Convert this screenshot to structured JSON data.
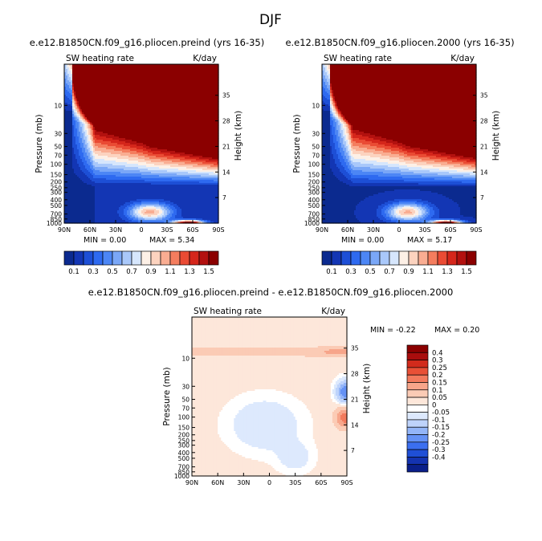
{
  "figure": {
    "title": "DJF"
  },
  "palettes": {
    "top": [
      "#0b2a8f",
      "#1336b4",
      "#1d4fd6",
      "#2e6af0",
      "#4c86f5",
      "#7aa7f7",
      "#a9c8fa",
      "#d6e6fc",
      "#fdf0e6",
      "#fcd3bf",
      "#f9ad92",
      "#f47d5e",
      "#ea4b34",
      "#d5261b",
      "#b3110f",
      "#8b0000"
    ],
    "diff": [
      "#0a1f8a",
      "#1433b0",
      "#1f4fd6",
      "#3b6ff0",
      "#6592f5",
      "#93b5f8",
      "#bed3fb",
      "#dde9fd",
      "#ffffff",
      "#fde7da",
      "#fbcbb5",
      "#f7a58a",
      "#f27a5d",
      "#e85036",
      "#d22b1c",
      "#a90d0d",
      "#8b0000"
    ]
  },
  "chart_data": [
    {
      "type": "heatmap",
      "name": "preind",
      "title": "e.e12.B1850CN.f09_g16.pliocen.preind (yrs 16-35)",
      "subtitle_left": "SW heating rate",
      "subtitle_right": "K/day",
      "ylabel": "Pressure (mb)",
      "ylabel_right": "Height (km)",
      "x_ticks": [
        "90N",
        "60N",
        "30N",
        "0",
        "30S",
        "60S",
        "90S"
      ],
      "y_ticks": [
        "10",
        "30",
        "50",
        "70",
        "100",
        "150",
        "200",
        "250",
        "300",
        "400",
        "500",
        "700",
        "850",
        "1000"
      ],
      "y_ticks_right": [
        "35",
        "28",
        "21",
        "14",
        "7"
      ],
      "ylim": [
        1000,
        2
      ],
      "min_label": "MIN = 0.00",
      "max_label": "MAX = 5.34",
      "min": 0.0,
      "max": 5.34,
      "colorbar_labels": [
        "0.1",
        "0.3",
        "0.5",
        "0.7",
        "0.9",
        "1.1",
        "1.3",
        "1.5"
      ]
    },
    {
      "type": "heatmap",
      "name": "2000",
      "title": "e.e12.B1850CN.f09_g16.pliocen.2000 (yrs 16-35)",
      "subtitle_left": "SW heating rate",
      "subtitle_right": "K/day",
      "ylabel": "Pressure (mb)",
      "ylabel_right": "Height (km)",
      "x_ticks": [
        "90N",
        "60N",
        "30N",
        "0",
        "30S",
        "60S",
        "90S"
      ],
      "y_ticks": [
        "10",
        "30",
        "50",
        "70",
        "100",
        "150",
        "200",
        "250",
        "300",
        "400",
        "500",
        "700",
        "850",
        "1000"
      ],
      "y_ticks_right": [
        "35",
        "28",
        "21",
        "14",
        "7"
      ],
      "ylim": [
        1000,
        2
      ],
      "min_label": "MIN = 0.00",
      "max_label": "MAX = 5.17",
      "min": 0.0,
      "max": 5.17,
      "colorbar_labels": [
        "0.1",
        "0.3",
        "0.5",
        "0.7",
        "0.9",
        "1.1",
        "1.3",
        "1.5"
      ]
    },
    {
      "type": "heatmap",
      "name": "difference",
      "title": "e.e12.B1850CN.f09_g16.pliocen.preind - e.e12.B1850CN.f09_g16.pliocen.2000",
      "subtitle_left": "SW heating rate",
      "subtitle_right": "K/day",
      "ylabel": "Pressure (mb)",
      "ylabel_right": "Height (km)",
      "x_ticks": [
        "90N",
        "60N",
        "30N",
        "0",
        "30S",
        "60S",
        "90S"
      ],
      "y_ticks": [
        "10",
        "30",
        "50",
        "70",
        "100",
        "150",
        "200",
        "250",
        "300",
        "400",
        "500",
        "700",
        "850",
        "1000"
      ],
      "y_ticks_right": [
        "35",
        "28",
        "21",
        "14",
        "7"
      ],
      "ylim": [
        1000,
        2
      ],
      "min_label": "MIN = -0.22",
      "max_label": "MAX = 0.20",
      "min": -0.22,
      "max": 0.2,
      "colorbar_labels": [
        "0.4",
        "0.3",
        "0.25",
        "0.2",
        "0.15",
        "0.1",
        "0.05",
        "0",
        "-0.05",
        "-0.1",
        "-0.15",
        "-0.2",
        "-0.25",
        "-0.3",
        "-0.4"
      ]
    }
  ]
}
